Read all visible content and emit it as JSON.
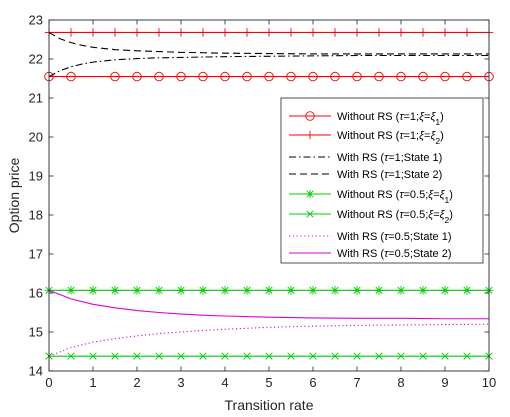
{
  "chart_data": {
    "type": "line",
    "xlabel": "Transition rate",
    "ylabel": "Option price",
    "xlim": [
      0,
      10
    ],
    "ylim": [
      14,
      23
    ],
    "xticks": [
      "0",
      "1",
      "2",
      "3",
      "4",
      "5",
      "6",
      "7",
      "8",
      "9",
      "10"
    ],
    "yticks": [
      "14",
      "15",
      "16",
      "17",
      "18",
      "19",
      "20",
      "21",
      "22",
      "23"
    ],
    "grid": false,
    "legend_position": "right",
    "series": [
      {
        "name": "Without RS (τ=1;ξ=ξ1)",
        "legend_parts": [
          {
            "t": "Without RS ("
          },
          {
            "t": "τ",
            "i": true
          },
          {
            "t": "=1;"
          },
          {
            "t": "ξ",
            "i": true
          },
          {
            "t": "="
          },
          {
            "t": "ξ",
            "i": true
          },
          {
            "t": "1",
            "sub": true
          },
          {
            "t": ")"
          }
        ],
        "color": "#ff0000",
        "style": "solid",
        "marker": "circle",
        "x": [
          0,
          0.5,
          1.5,
          2,
          2.5,
          3,
          3.5,
          4,
          4.5,
          5,
          5.5,
          6,
          6.5,
          7,
          7.5,
          8,
          8.5,
          9,
          9.5,
          10
        ],
        "y": [
          21.55,
          21.55,
          21.55,
          21.55,
          21.55,
          21.55,
          21.55,
          21.55,
          21.55,
          21.55,
          21.55,
          21.55,
          21.55,
          21.55,
          21.55,
          21.55,
          21.55,
          21.55,
          21.55,
          21.55
        ]
      },
      {
        "name": "Without RS (τ=1;ξ=ξ2)",
        "legend_parts": [
          {
            "t": "Without RS ("
          },
          {
            "t": "τ",
            "i": true
          },
          {
            "t": "=1;"
          },
          {
            "t": "ξ",
            "i": true
          },
          {
            "t": "="
          },
          {
            "t": "ξ",
            "i": true
          },
          {
            "t": "2",
            "sub": true
          },
          {
            "t": ")"
          }
        ],
        "color": "#ff0000",
        "style": "solid",
        "marker": "plus",
        "x": [
          0,
          0.5,
          1,
          1.5,
          2,
          2.5,
          3,
          3.5,
          4,
          4.5,
          5,
          5.5,
          6,
          6.5,
          7,
          7.5,
          8,
          8.5,
          9,
          9.5,
          10
        ],
        "y": [
          22.68,
          22.68,
          22.68,
          22.68,
          22.68,
          22.68,
          22.68,
          22.68,
          22.68,
          22.68,
          22.68,
          22.68,
          22.68,
          22.68,
          22.68,
          22.68,
          22.68,
          22.68,
          22.68,
          22.68,
          22.68
        ]
      },
      {
        "name": "With RS (τ=1;State 1)",
        "legend_parts": [
          {
            "t": "With RS ("
          },
          {
            "t": "τ",
            "i": true
          },
          {
            "t": "=1;State 1)"
          }
        ],
        "color": "#000000",
        "style": "dashdot",
        "marker": "none",
        "x": [
          0,
          0.25,
          0.5,
          0.75,
          1,
          1.5,
          2,
          2.5,
          3,
          3.5,
          4,
          5,
          6,
          7,
          8,
          9,
          10
        ],
        "y": [
          21.55,
          21.7,
          21.8,
          21.87,
          21.92,
          21.98,
          22.01,
          22.03,
          22.04,
          22.05,
          22.06,
          22.07,
          22.08,
          22.09,
          22.09,
          22.09,
          22.09
        ]
      },
      {
        "name": "With RS (τ=1;State 2)",
        "legend_parts": [
          {
            "t": "With RS ("
          },
          {
            "t": "τ",
            "i": true
          },
          {
            "t": "=1;State 2)"
          }
        ],
        "color": "#000000",
        "style": "dash",
        "marker": "none",
        "x": [
          0,
          0.25,
          0.5,
          0.75,
          1,
          1.5,
          2,
          2.5,
          3,
          3.5,
          4,
          5,
          6,
          7,
          8,
          9,
          10
        ],
        "y": [
          22.68,
          22.52,
          22.42,
          22.35,
          22.3,
          22.24,
          22.21,
          22.19,
          22.17,
          22.16,
          22.15,
          22.14,
          22.13,
          22.13,
          22.13,
          22.13,
          22.13
        ]
      },
      {
        "name": "Without RS (τ=0.5;ξ=ξ1)",
        "legend_parts": [
          {
            "t": "Without RS ("
          },
          {
            "t": "τ",
            "i": true
          },
          {
            "t": "=0.5;"
          },
          {
            "t": "ξ",
            "i": true
          },
          {
            "t": "="
          },
          {
            "t": "ξ",
            "i": true
          },
          {
            "t": "1",
            "sub": true
          },
          {
            "t": ")"
          }
        ],
        "color": "#00cc00",
        "style": "solid",
        "marker": "asterisk",
        "x": [
          0,
          0.5,
          1,
          1.5,
          2,
          2.5,
          3,
          3.5,
          4,
          4.5,
          5,
          5.5,
          6,
          6.5,
          7,
          7.5,
          8,
          8.5,
          9,
          9.5,
          10
        ],
        "y": [
          16.07,
          16.07,
          16.07,
          16.07,
          16.07,
          16.07,
          16.07,
          16.07,
          16.07,
          16.07,
          16.07,
          16.07,
          16.07,
          16.07,
          16.07,
          16.07,
          16.07,
          16.07,
          16.07,
          16.07,
          16.07
        ]
      },
      {
        "name": "Without RS (τ=0.5;ξ=ξ2)",
        "legend_parts": [
          {
            "t": "Without RS ("
          },
          {
            "t": "τ",
            "i": true
          },
          {
            "t": "=0.5;"
          },
          {
            "t": "ξ",
            "i": true
          },
          {
            "t": "="
          },
          {
            "t": "ξ",
            "i": true
          },
          {
            "t": "2",
            "sub": true
          },
          {
            "t": ")"
          }
        ],
        "color": "#00cc00",
        "style": "solid",
        "marker": "x",
        "x": [
          0,
          0.5,
          1,
          1.5,
          2,
          2.5,
          3,
          3.5,
          4,
          4.5,
          5,
          5.5,
          6,
          6.5,
          7,
          7.5,
          8,
          8.5,
          9,
          9.5,
          10
        ],
        "y": [
          14.38,
          14.38,
          14.38,
          14.38,
          14.38,
          14.38,
          14.38,
          14.38,
          14.38,
          14.38,
          14.38,
          14.38,
          14.38,
          14.38,
          14.38,
          14.38,
          14.38,
          14.38,
          14.38,
          14.38,
          14.38
        ]
      },
      {
        "name": "With RS (τ=0.5;State 1)",
        "legend_parts": [
          {
            "t": "With RS ("
          },
          {
            "t": "τ",
            "i": true
          },
          {
            "t": "=0.5;State 1)"
          }
        ],
        "color": "#dd00dd",
        "style": "dot",
        "marker": "none",
        "x": [
          0,
          0.5,
          1,
          1.5,
          2,
          2.5,
          3,
          3.5,
          4,
          5,
          6,
          7,
          8,
          9,
          10
        ],
        "y": [
          14.38,
          14.6,
          14.74,
          14.83,
          14.9,
          14.96,
          15.0,
          15.04,
          15.07,
          15.12,
          15.15,
          15.17,
          15.18,
          15.19,
          15.2
        ]
      },
      {
        "name": "With RS (τ=0.5;State 2)",
        "legend_parts": [
          {
            "t": "With RS ("
          },
          {
            "t": "τ",
            "i": true
          },
          {
            "t": "=0.5;State 2)"
          }
        ],
        "color": "#dd00dd",
        "style": "solid",
        "marker": "none",
        "x": [
          0,
          0.5,
          1,
          1.5,
          2,
          2.5,
          3,
          3.5,
          4,
          5,
          6,
          7,
          8,
          9,
          10
        ],
        "y": [
          16.07,
          15.85,
          15.71,
          15.62,
          15.55,
          15.5,
          15.46,
          15.43,
          15.41,
          15.38,
          15.36,
          15.35,
          15.35,
          15.34,
          15.34
        ]
      }
    ]
  }
}
